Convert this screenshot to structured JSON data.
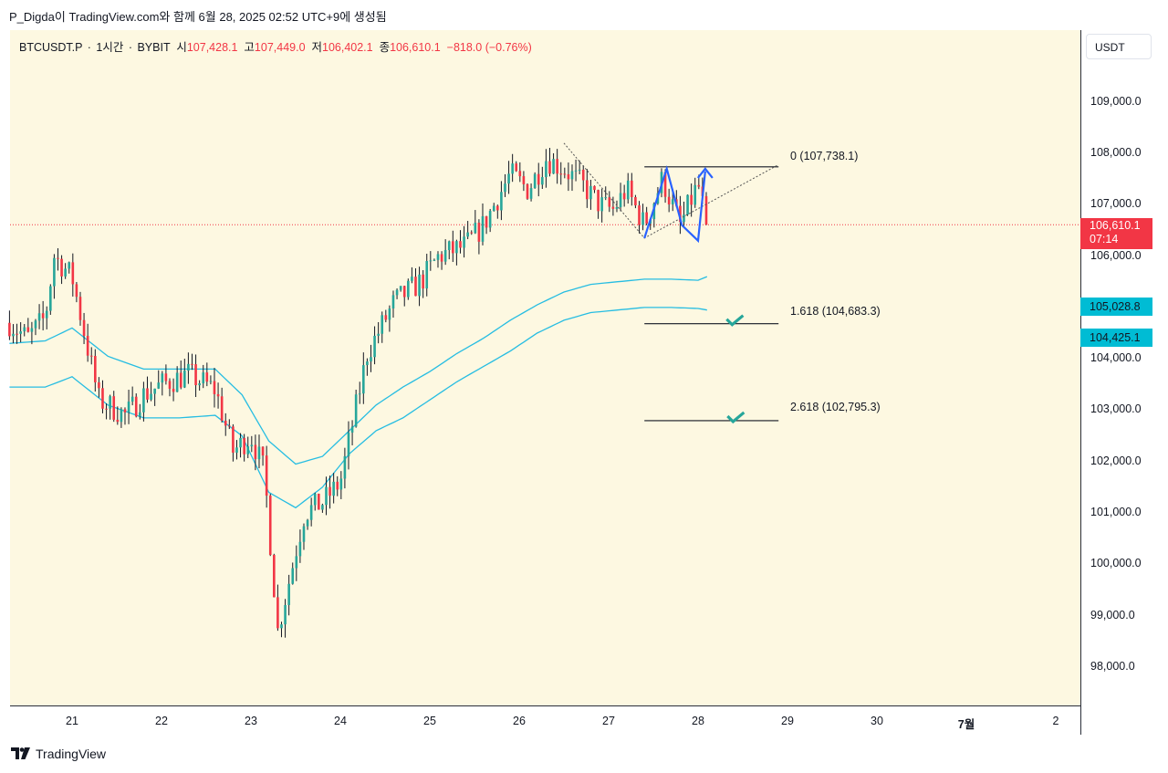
{
  "caption": "P_Digda이 TradingView.com와 함께 6월 28, 2025 02:52 UTC+9에 생성됨",
  "legend": {
    "symbol": "BTCUSDT.P",
    "interval": "1시간",
    "exchange": "BYBIT",
    "open_label": "시",
    "open": "107,428.1",
    "high_label": "고",
    "high": "107,449.0",
    "low_label": "저",
    "low": "106,402.1",
    "close_label": "종",
    "close": "106,610.1",
    "change": "−818.0 (−0.76%)"
  },
  "currency": "USDT",
  "colors": {
    "background": "#fdf8e1",
    "up": "#26a69a",
    "down": "#f23645",
    "band": "#26bde2",
    "pattern": "#2962ff",
    "check": "#26a69a",
    "badge_price": "#f23645",
    "badge_band": "#00bcd4"
  },
  "price_badge": {
    "price": "106,610.1",
    "countdown": "07:14"
  },
  "band_badges": [
    "105,028.8",
    "104,425.1"
  ],
  "fib_levels": [
    {
      "label": "0 (107,738.1)",
      "price": 107738.1
    },
    {
      "label": "1.618 (104,683.3)",
      "price": 104683.3
    },
    {
      "label": "2.618 (102,795.3)",
      "price": 102795.3
    }
  ],
  "footer_brand": "TradingView",
  "logo_text": "TV",
  "chart_data": {
    "type": "candlestick",
    "title": "",
    "x_tick_labels": [
      "21",
      "22",
      "23",
      "24",
      "25",
      "26",
      "27",
      "28",
      "29",
      "30",
      "7월",
      "2"
    ],
    "y_tick_labels": [
      "109,000.0",
      "108,000.0",
      "107,000.0",
      "106,000.0",
      "104,000.0",
      "103,000.0",
      "102,000.0",
      "101,000.0",
      "100,000.0",
      "99,000.0",
      "98,000.0"
    ],
    "y_ticks": [
      109000,
      108000,
      107000,
      106000,
      104000,
      103000,
      102000,
      101000,
      100000,
      99000,
      98000
    ],
    "ylim": [
      97250,
      110400
    ],
    "x_range_days": [
      20.3,
      32.3
    ],
    "grid": false,
    "last_price": 106610.1,
    "close_path_days": [
      20.3,
      20.5,
      20.7,
      20.8,
      21.0,
      21.3,
      21.6,
      21.8,
      22.0,
      22.3,
      22.6,
      22.8,
      23.0,
      23.15,
      23.3,
      23.6,
      23.8,
      24.0,
      24.3,
      24.6,
      24.9,
      25.1,
      25.4,
      25.6,
      25.9,
      26.1,
      26.3,
      26.5,
      26.7,
      26.9,
      27.05,
      27.2,
      27.4,
      27.6,
      27.8,
      28.0,
      28.1
    ],
    "close_path_values": [
      104700,
      104400,
      104800,
      106000,
      105600,
      103200,
      102900,
      103300,
      103500,
      103700,
      103400,
      102200,
      102500,
      101800,
      98700,
      101000,
      101200,
      101600,
      104100,
      105100,
      105500,
      106000,
      106200,
      106600,
      107600,
      107300,
      107900,
      107700,
      107400,
      107000,
      106900,
      107300,
      106600,
      107500,
      106600,
      107400,
      106610
    ],
    "bands": [
      {
        "name": "upper",
        "days": [
          20.3,
          20.7,
          21.0,
          21.4,
          21.8,
          22.2,
          22.6,
          22.9,
          23.2,
          23.5,
          23.8,
          24.1,
          24.4,
          24.7,
          25.0,
          25.3,
          25.6,
          25.9,
          26.2,
          26.5,
          26.8,
          27.1,
          27.4,
          27.7,
          28.0,
          28.1
        ],
        "values": [
          104300,
          104350,
          104600,
          104050,
          103800,
          103800,
          103800,
          103300,
          102400,
          101950,
          102100,
          102600,
          103100,
          103450,
          103750,
          104100,
          104400,
          104750,
          105050,
          105300,
          105450,
          105500,
          105550,
          105550,
          105530,
          105600
        ]
      },
      {
        "name": "lower",
        "days": [
          20.3,
          20.7,
          21.0,
          21.4,
          21.8,
          22.2,
          22.6,
          22.9,
          23.2,
          23.5,
          23.8,
          24.1,
          24.4,
          24.7,
          25.0,
          25.3,
          25.6,
          25.9,
          26.2,
          26.5,
          26.8,
          27.1,
          27.4,
          27.7,
          28.0,
          28.1
        ],
        "values": [
          103450,
          103450,
          103650,
          103100,
          102850,
          102850,
          102900,
          102500,
          101400,
          101100,
          101500,
          102150,
          102600,
          102850,
          103200,
          103550,
          103850,
          104150,
          104500,
          104750,
          104900,
          104950,
          105000,
          105000,
          104980,
          104950
        ]
      }
    ]
  }
}
